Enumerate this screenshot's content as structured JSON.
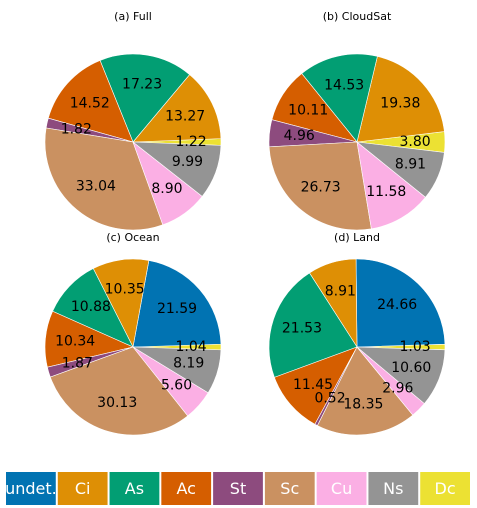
{
  "chart_data": [
    {
      "type": "pie",
      "title": "(a) Full",
      "slices": [
        {
          "category": "Dc",
          "value": 1.22,
          "label": "1.22",
          "color": "#ece133"
        },
        {
          "category": "Ci",
          "value": 13.27,
          "label": "13.27",
          "color": "#de8f05"
        },
        {
          "category": "As",
          "value": 17.23,
          "label": "17.23",
          "color": "#029e73"
        },
        {
          "category": "Ac",
          "value": 14.52,
          "label": "14.52",
          "color": "#d55e00"
        },
        {
          "category": "St",
          "value": 1.82,
          "label": "1.82",
          "color": "#8d4b7e"
        },
        {
          "category": "Sc",
          "value": 33.04,
          "label": "33.04",
          "color": "#ca9161"
        },
        {
          "category": "Cu",
          "value": 8.9,
          "label": "8.90",
          "color": "#fbafe4"
        },
        {
          "category": "Ns",
          "value": 9.99,
          "label": "9.99",
          "color": "#949494"
        }
      ]
    },
    {
      "type": "pie",
      "title": "(b) CloudSat",
      "slices": [
        {
          "category": "Dc",
          "value": 3.8,
          "label": "3.80",
          "color": "#ece133"
        },
        {
          "category": "Ci",
          "value": 19.38,
          "label": "19.38",
          "color": "#de8f05"
        },
        {
          "category": "As",
          "value": 14.53,
          "label": "14.53",
          "color": "#029e73"
        },
        {
          "category": "Ac",
          "value": 10.11,
          "label": "10.11",
          "color": "#d55e00"
        },
        {
          "category": "St",
          "value": 4.96,
          "label": "4.96",
          "color": "#8d4b7e"
        },
        {
          "category": "Sc",
          "value": 26.73,
          "label": "26.73",
          "color": "#ca9161"
        },
        {
          "category": "Cu",
          "value": 11.58,
          "label": "11.58",
          "color": "#fbafe4"
        },
        {
          "category": "Ns",
          "value": 8.91,
          "label": "8.91",
          "color": "#949494"
        }
      ]
    },
    {
      "type": "pie",
      "title": "(c) Ocean",
      "slices": [
        {
          "category": "Dc",
          "value": 1.04,
          "label": "1.04",
          "color": "#ece133"
        },
        {
          "category": "undet.",
          "value": 21.59,
          "label": "21.59",
          "color": "#0173b2"
        },
        {
          "category": "Ci",
          "value": 10.35,
          "label": "10.35",
          "color": "#de8f05"
        },
        {
          "category": "As",
          "value": 10.88,
          "label": "10.88",
          "color": "#029e73"
        },
        {
          "category": "Ac",
          "value": 10.34,
          "label": "10.34",
          "color": "#d55e00"
        },
        {
          "category": "St",
          "value": 1.87,
          "label": "1.87",
          "color": "#8d4b7e"
        },
        {
          "category": "Sc",
          "value": 30.13,
          "label": "30.13",
          "color": "#ca9161"
        },
        {
          "category": "Cu",
          "value": 5.6,
          "label": "5.60",
          "color": "#fbafe4"
        },
        {
          "category": "Ns",
          "value": 8.19,
          "label": "8.19",
          "color": "#949494"
        }
      ]
    },
    {
      "type": "pie",
      "title": "(d) Land",
      "slices": [
        {
          "category": "Dc",
          "value": 1.03,
          "label": "1.03",
          "color": "#ece133"
        },
        {
          "category": "undet.",
          "value": 24.66,
          "label": "24.66",
          "color": "#0173b2"
        },
        {
          "category": "Ci",
          "value": 8.91,
          "label": "8.91",
          "color": "#de8f05"
        },
        {
          "category": "As",
          "value": 21.53,
          "label": "21.53",
          "color": "#029e73"
        },
        {
          "category": "Ac",
          "value": 11.45,
          "label": "11.45",
          "color": "#d55e00"
        },
        {
          "category": "St",
          "value": 0.52,
          "label": "0.52",
          "color": "#8d4b7e"
        },
        {
          "category": "Sc",
          "value": 18.35,
          "label": "18.35",
          "color": "#ca9161"
        },
        {
          "category": "Cu",
          "value": 2.96,
          "label": "2.96",
          "color": "#fbafe4"
        },
        {
          "category": "Ns",
          "value": 10.6,
          "label": "10.60",
          "color": "#949494"
        }
      ]
    }
  ],
  "legend": {
    "placement": "bottom",
    "items": [
      {
        "label": "undet.",
        "color": "#0173b2"
      },
      {
        "label": "Ci",
        "color": "#de8f05"
      },
      {
        "label": "As",
        "color": "#029e73"
      },
      {
        "label": "Ac",
        "color": "#d55e00"
      },
      {
        "label": "St",
        "color": "#8d4b7e"
      },
      {
        "label": "Sc",
        "color": "#ca9161"
      },
      {
        "label": "Cu",
        "color": "#fbafe4"
      },
      {
        "label": "Ns",
        "color": "#949494"
      },
      {
        "label": "Dc",
        "color": "#ece133"
      }
    ]
  }
}
